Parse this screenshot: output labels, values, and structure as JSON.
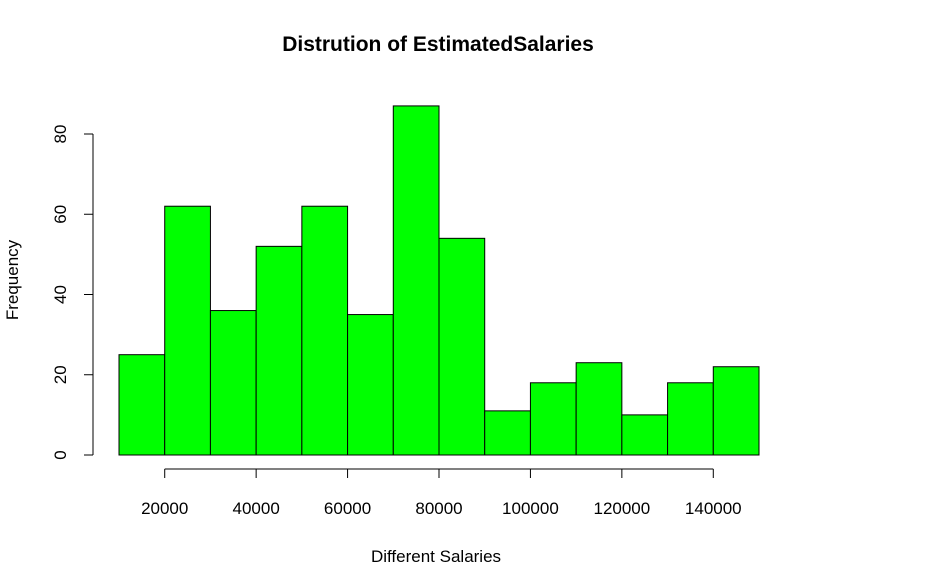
{
  "chart_data": {
    "type": "bar",
    "title": "Distrution of EstimatedSalaries",
    "xlabel": "Different Salaries",
    "ylabel": "Frequency",
    "bin_edges": [
      10000,
      20000,
      30000,
      40000,
      50000,
      60000,
      70000,
      80000,
      90000,
      100000,
      110000,
      120000,
      130000,
      140000,
      150000
    ],
    "values": [
      25,
      62,
      36,
      52,
      62,
      35,
      87,
      54,
      11,
      18,
      23,
      10,
      18,
      22
    ],
    "x_ticks": [
      20000,
      40000,
      60000,
      80000,
      100000,
      120000,
      140000
    ],
    "x_tick_labels": [
      "20000",
      "40000",
      "60000",
      "80000",
      "100000",
      "120000",
      "140000"
    ],
    "y_ticks": [
      0,
      20,
      40,
      60,
      80
    ],
    "y_tick_labels": [
      "0",
      "20",
      "40",
      "60",
      "80"
    ],
    "xlim": [
      10000,
      150000
    ],
    "ylim": [
      0,
      80
    ],
    "bar_color": "#00ff00",
    "grid": false,
    "legend": "none"
  }
}
